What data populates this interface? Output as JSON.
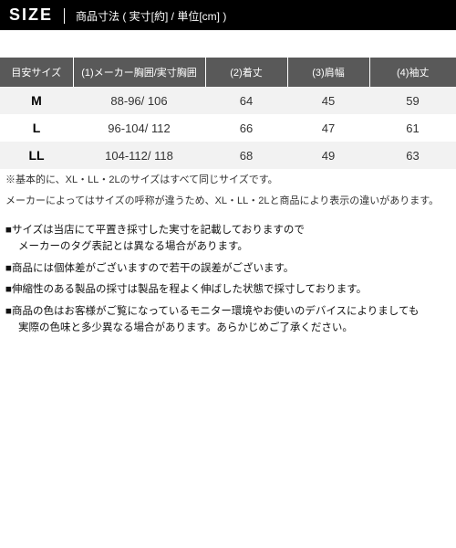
{
  "header": {
    "title": "SIZE",
    "subtitle": "商品寸法 ( 実寸[約] / 単位[cm] )"
  },
  "table": {
    "columns": [
      "目安サイズ",
      "(1)メーカー胸囲/実寸胸囲",
      "(2)着丈",
      "(3)肩幅",
      "(4)袖丈"
    ],
    "rows": [
      {
        "size": "M",
        "chest": "88-96/ 106",
        "length": "64",
        "shoulder": "45",
        "sleeve": "59"
      },
      {
        "size": "L",
        "chest": "96-104/ 112",
        "length": "66",
        "shoulder": "47",
        "sleeve": "61"
      },
      {
        "size": "LL",
        "chest": "104-112/ 118",
        "length": "68",
        "shoulder": "49",
        "sleeve": "63"
      }
    ],
    "footnote1": "※基本的に、XL・LL・2Lのサイズはすべて同じサイズです。",
    "footnote2": "メーカーによってはサイズの呼称が違うため、XL・LL・2Lと商品により表示の違いがあります。",
    "header_bg": "#595959",
    "header_fg": "#ffffff",
    "row_even_bg": "#f2f2f2",
    "row_odd_bg": "#ffffff"
  },
  "notes": {
    "items": [
      {
        "line1": "■サイズは当店にて平置き採寸した実寸を記載しておりますので",
        "line2": "メーカーのタグ表記とは異なる場合があります。"
      },
      {
        "line1": "■商品には個体差がございますので若干の誤差がございます。",
        "line2": ""
      },
      {
        "line1": "■伸縮性のある製品の採寸は製品を程よく伸ばした状態で採寸しております。",
        "line2": ""
      },
      {
        "line1": "■商品の色はお客様がご覧になっているモニター環境やお使いのデバイスによりましても",
        "line2": "実際の色味と多少異なる場合があります。あらかじめご了承ください。"
      }
    ]
  },
  "colors": {
    "black": "#000000",
    "white": "#ffffff",
    "text": "#333333"
  }
}
